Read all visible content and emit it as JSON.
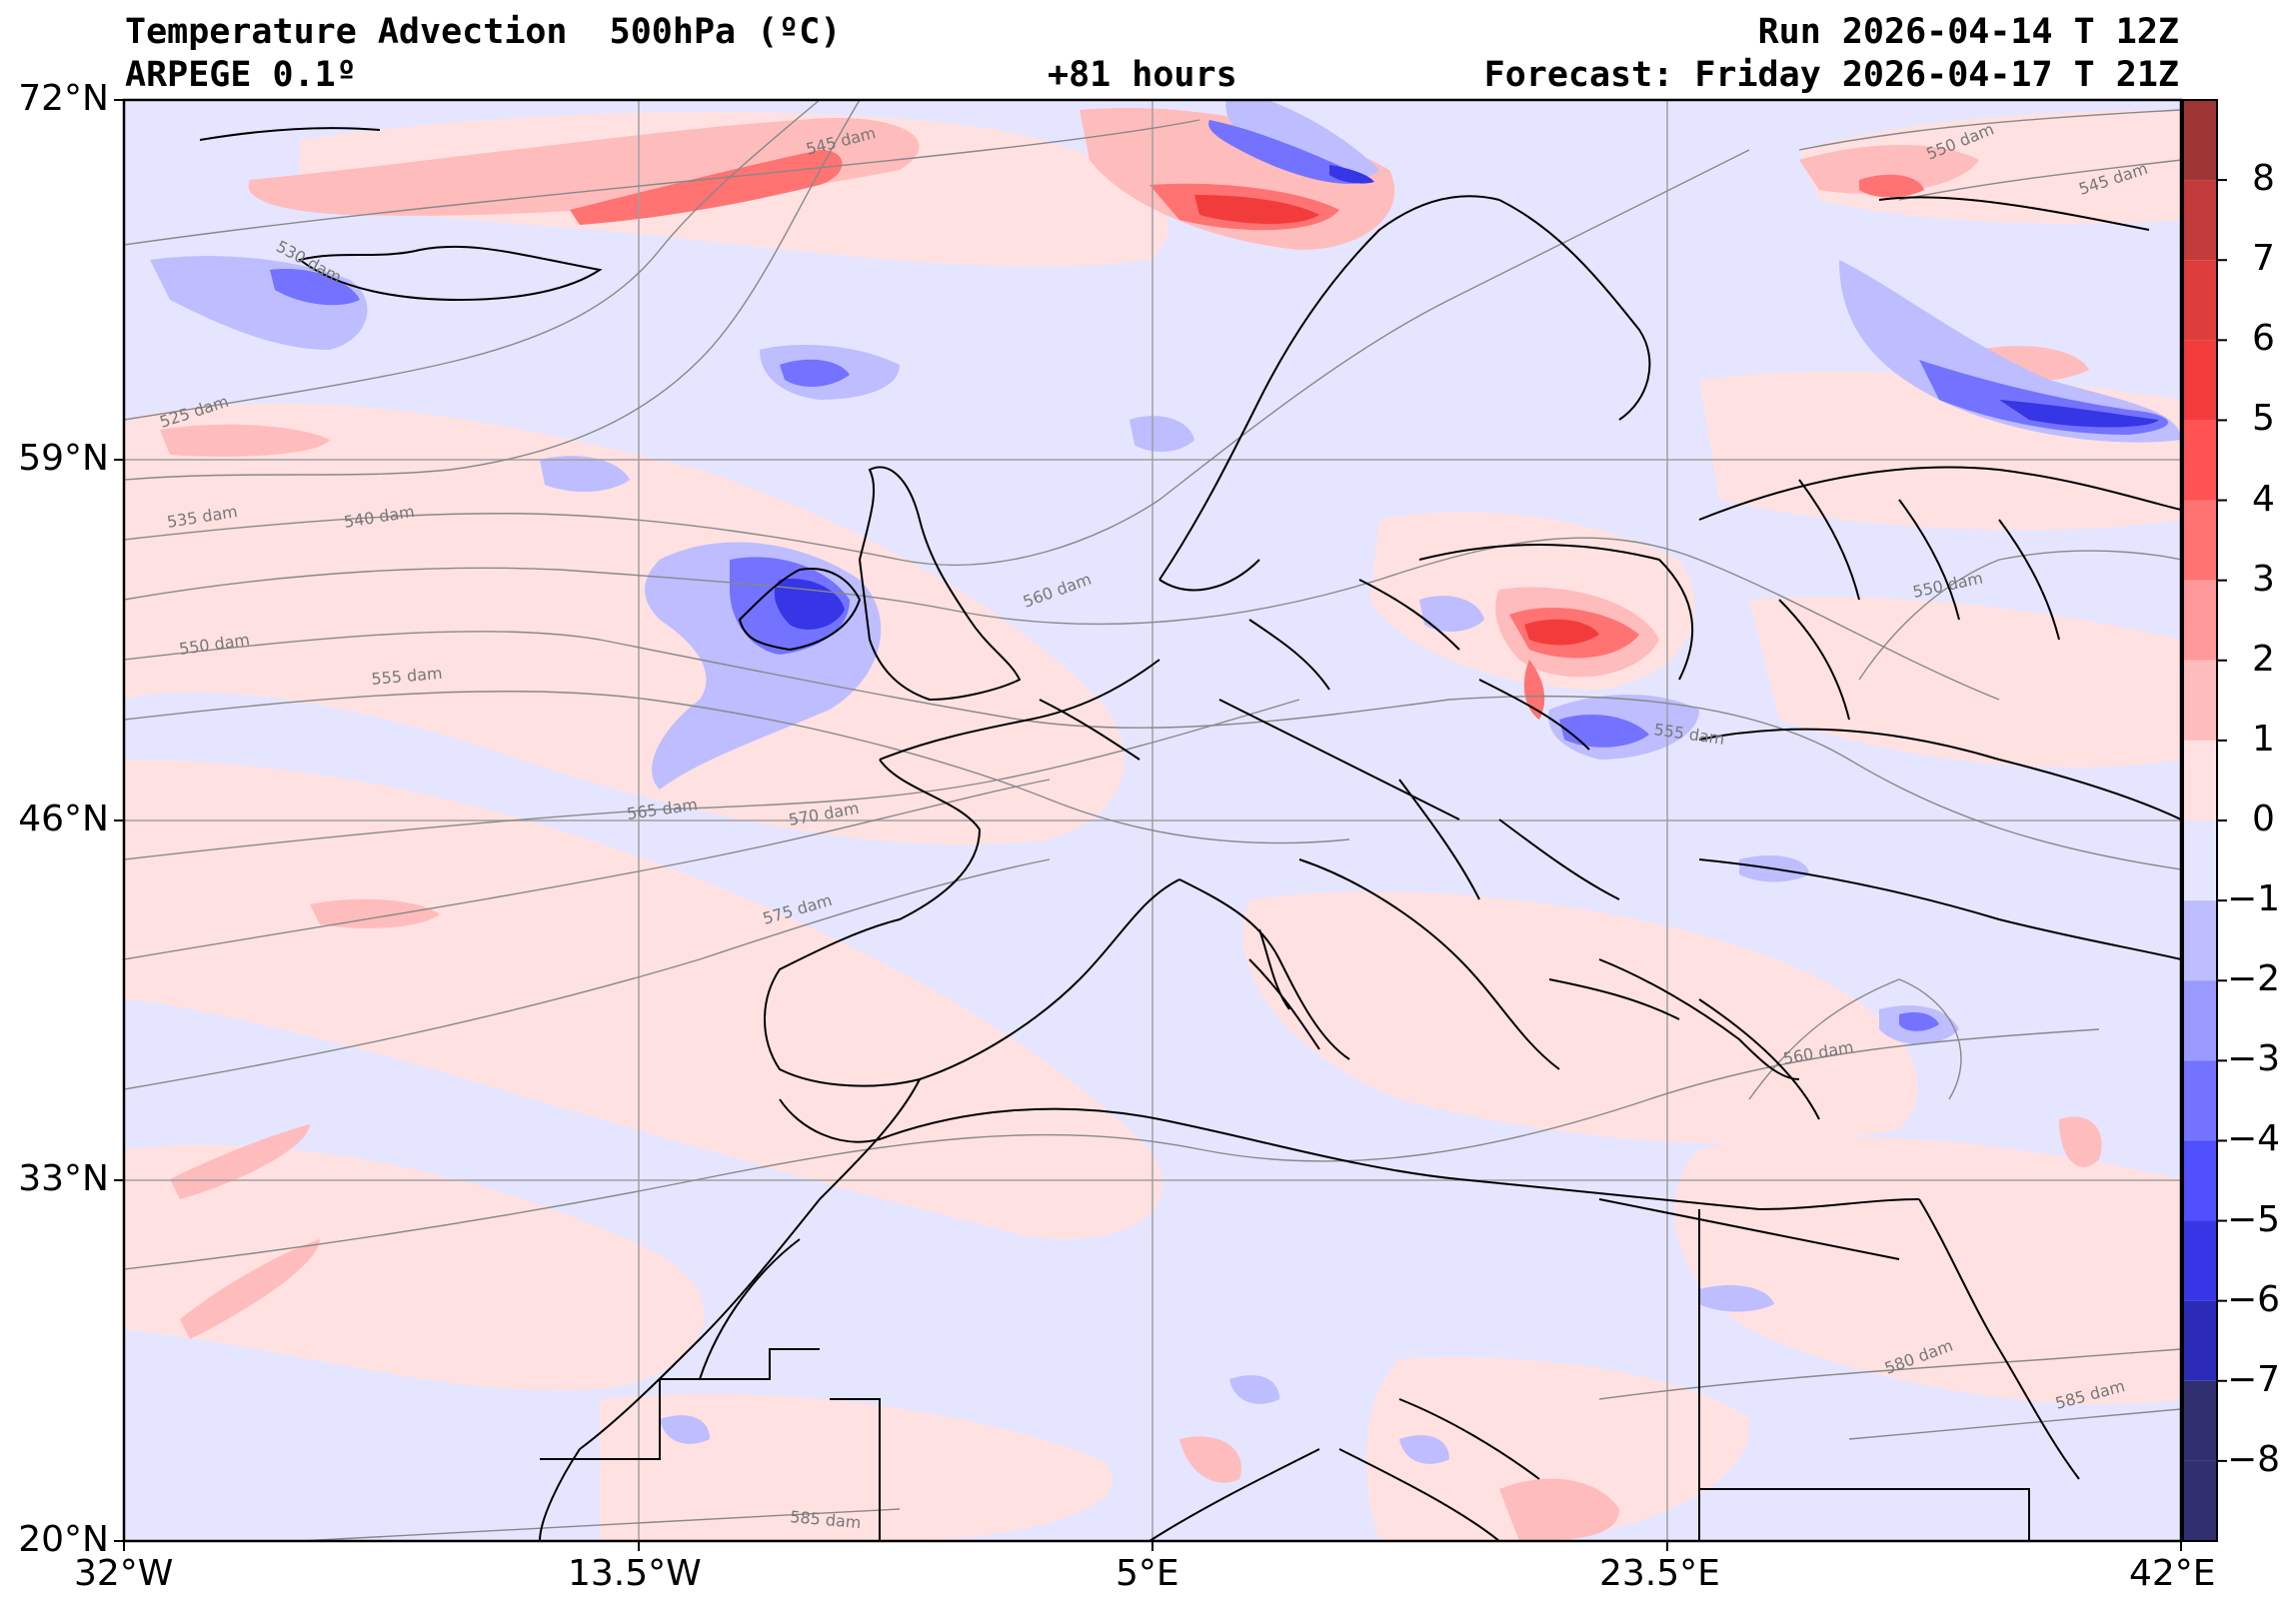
{
  "header": {
    "title": "Temperature Advection  500hPa (ºC)",
    "model": "ARPEGE 0.1º",
    "lead": "+81 hours",
    "run": "Run 2026-04-14 T 12Z",
    "forecast": "Forecast: Friday 2026-04-17 T 21Z"
  },
  "axes": {
    "lat_labels": [
      "72°N",
      "59°N",
      "46°N",
      "33°N",
      "20°N"
    ],
    "lon_labels": [
      "32°W",
      "13.5°W",
      "5°E",
      "23.5°E",
      "42°E"
    ]
  },
  "colorbar": {
    "ticks": [
      "8",
      "7",
      "6",
      "5",
      "4",
      "3",
      "2",
      "1",
      "0",
      "−1",
      "−2",
      "−3",
      "−4",
      "−5",
      "−6",
      "−7",
      "−8"
    ],
    "colors": [
      "#9e3535",
      "#c23a3a",
      "#dd3d3d",
      "#f23c3c",
      "#ff5252",
      "#ff7373",
      "#ff9999",
      "#ffbcbc",
      "#ffe1e1",
      "#e5e5ff",
      "#bdbdff",
      "#9999ff",
      "#7373ff",
      "#5050ff",
      "#3636e6",
      "#2b2bb8",
      "#303070"
    ]
  },
  "contours": [
    "545 dam",
    "530 dam",
    "525 dam",
    "535 dam",
    "540 dam",
    "550 dam",
    "555 dam",
    "560 dam",
    "565 dam",
    "570 dam",
    "575 dam",
    "555 dam",
    "560 dam",
    "580 dam",
    "585 dam",
    "585 dam",
    "550 dam",
    "545 dam",
    "550 dam"
  ],
  "palette": {
    "pos_light": "#ffe1e1",
    "pos_mid": "#ffbcbc",
    "pos_strong": "#ff7373",
    "neg_light": "#e5e5ff",
    "neg_mid": "#bdbdff",
    "neg_strong": "#7373ff",
    "neg_core": "#3636e6"
  }
}
